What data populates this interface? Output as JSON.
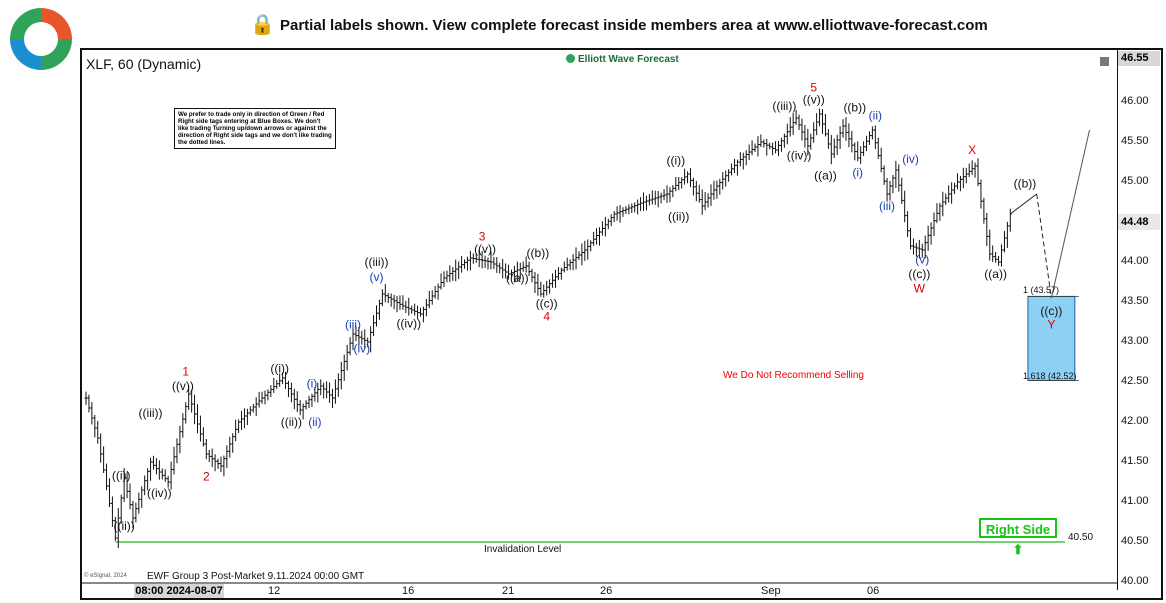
{
  "banner": {
    "text": "Partial labels shown. View complete forecast inside members area at www.elliottwave-forecast.com"
  },
  "panel": {
    "title": "XLF, 60 (Dynamic)",
    "watermark": "Elliott Wave Forecast",
    "note": "We prefer to trade only in direction of Green / Red Right side tags entering at Blue Boxes. We don't like trading Turning up/down arrows or against the direction of Right side tags and we don't like trading the dotted lines.",
    "footer": "EWF Group 3 Post-Market 9.11.2024 00:00 GMT",
    "copyright": "© eSignal, 2024"
  },
  "colors": {
    "wave_red": "#dd0000",
    "wave_blue": "#1a3fb5",
    "wave_black": "#111111",
    "box": "#8dd0f3",
    "invalidation": "#22bb22"
  },
  "chart_data": {
    "type": "candlestick",
    "symbol": "XLF",
    "interval": "60",
    "ylim": [
      40.0,
      46.55
    ],
    "y_ticks": [
      "46.55",
      "46.00",
      "45.50",
      "45.00",
      "44.48",
      "44.00",
      "43.50",
      "43.00",
      "42.50",
      "42.00",
      "41.50",
      "41.00",
      "40.50",
      "40.00"
    ],
    "last_price": "44.48",
    "top_price": "46.55",
    "x_ticks": [
      "08:00 2024-08-07",
      "12",
      "16",
      "21",
      "26",
      "Sep",
      "06"
    ],
    "price_path": [
      {
        "t": 0,
        "p": 42.3
      },
      {
        "t": 4,
        "p": 41.8
      },
      {
        "t": 7,
        "p": 41.2
      },
      {
        "t": 10,
        "p": 40.55
      },
      {
        "t": 13,
        "p": 41.3
      },
      {
        "t": 16,
        "p": 40.8
      },
      {
        "t": 22,
        "p": 41.5
      },
      {
        "t": 28,
        "p": 41.25
      },
      {
        "t": 35,
        "p": 42.35
      },
      {
        "t": 41,
        "p": 41.6
      },
      {
        "t": 46,
        "p": 41.45
      },
      {
        "t": 52,
        "p": 42.0
      },
      {
        "t": 60,
        "p": 42.3
      },
      {
        "t": 67,
        "p": 42.55
      },
      {
        "t": 73,
        "p": 42.15
      },
      {
        "t": 80,
        "p": 42.45
      },
      {
        "t": 84,
        "p": 42.3
      },
      {
        "t": 91,
        "p": 43.1
      },
      {
        "t": 96,
        "p": 43.0
      },
      {
        "t": 101,
        "p": 43.6
      },
      {
        "t": 108,
        "p": 43.45
      },
      {
        "t": 114,
        "p": 43.35
      },
      {
        "t": 122,
        "p": 43.8
      },
      {
        "t": 131,
        "p": 44.05
      },
      {
        "t": 138,
        "p": 44.0
      },
      {
        "t": 144,
        "p": 43.85
      },
      {
        "t": 150,
        "p": 43.95
      },
      {
        "t": 155,
        "p": 43.6
      },
      {
        "t": 162,
        "p": 43.9
      },
      {
        "t": 170,
        "p": 44.15
      },
      {
        "t": 180,
        "p": 44.6
      },
      {
        "t": 190,
        "p": 44.75
      },
      {
        "t": 198,
        "p": 44.85
      },
      {
        "t": 205,
        "p": 45.1
      },
      {
        "t": 210,
        "p": 44.7
      },
      {
        "t": 215,
        "p": 44.95
      },
      {
        "t": 222,
        "p": 45.25
      },
      {
        "t": 230,
        "p": 45.5
      },
      {
        "t": 235,
        "p": 45.4
      },
      {
        "t": 242,
        "p": 45.8
      },
      {
        "t": 246,
        "p": 45.45
      },
      {
        "t": 250,
        "p": 45.85
      },
      {
        "t": 254,
        "p": 45.35
      },
      {
        "t": 258,
        "p": 45.7
      },
      {
        "t": 263,
        "p": 45.3
      },
      {
        "t": 268,
        "p": 45.65
      },
      {
        "t": 273,
        "p": 44.85
      },
      {
        "t": 276,
        "p": 45.15
      },
      {
        "t": 281,
        "p": 44.2
      },
      {
        "t": 285,
        "p": 44.15
      },
      {
        "t": 291,
        "p": 44.7
      },
      {
        "t": 297,
        "p": 45.0
      },
      {
        "t": 303,
        "p": 45.2
      },
      {
        "t": 308,
        "p": 44.1
      },
      {
        "t": 311,
        "p": 44.0
      },
      {
        "t": 315,
        "p": 44.6
      }
    ],
    "labels": [
      {
        "text": "((i))",
        "t": 12,
        "p": 41.28,
        "color": "black"
      },
      {
        "text": "((ii))",
        "t": 13,
        "p": 40.65,
        "color": "black"
      },
      {
        "text": "((iii))",
        "t": 22,
        "p": 42.06,
        "color": "black"
      },
      {
        "text": "((iv))",
        "t": 25,
        "p": 41.06,
        "color": "black"
      },
      {
        "text": "1",
        "t": 34,
        "p": 42.58,
        "color": "red"
      },
      {
        "text": "((v))",
        "t": 33,
        "p": 42.4,
        "color": "black"
      },
      {
        "text": "2",
        "t": 41,
        "p": 41.27,
        "color": "red"
      },
      {
        "text": "((i))",
        "t": 66,
        "p": 42.62,
        "color": "black"
      },
      {
        "text": "((ii))",
        "t": 70,
        "p": 41.95,
        "color": "black"
      },
      {
        "text": "(i)",
        "t": 77,
        "p": 42.43,
        "color": "blue"
      },
      {
        "text": "(ii)",
        "t": 78,
        "p": 41.95,
        "color": "blue"
      },
      {
        "text": "(iii)",
        "t": 91,
        "p": 43.17,
        "color": "blue"
      },
      {
        "text": "(iv)",
        "t": 94,
        "p": 42.87,
        "color": "blue"
      },
      {
        "text": "((iii))",
        "t": 99,
        "p": 43.95,
        "color": "black"
      },
      {
        "text": "(v)",
        "t": 99,
        "p": 43.76,
        "color": "blue"
      },
      {
        "text": "((iv))",
        "t": 110,
        "p": 43.18,
        "color": "black"
      },
      {
        "text": "3",
        "t": 135,
        "p": 44.27,
        "color": "red"
      },
      {
        "text": "((v))",
        "t": 136,
        "p": 44.11,
        "color": "black"
      },
      {
        "text": "((a))",
        "t": 147,
        "p": 43.75,
        "color": "black"
      },
      {
        "text": "((b))",
        "t": 154,
        "p": 44.06,
        "color": "black"
      },
      {
        "text": "((c))",
        "t": 157,
        "p": 43.43,
        "color": "black"
      },
      {
        "text": "4",
        "t": 157,
        "p": 43.27,
        "color": "red"
      },
      {
        "text": "((i))",
        "t": 201,
        "p": 45.22,
        "color": "black"
      },
      {
        "text": "((ii))",
        "t": 202,
        "p": 44.52,
        "color": "black"
      },
      {
        "text": "((iii))",
        "t": 238,
        "p": 45.9,
        "color": "black"
      },
      {
        "text": "((v))",
        "t": 248,
        "p": 45.98,
        "color": "black"
      },
      {
        "text": "5",
        "t": 248,
        "p": 46.13,
        "color": "red"
      },
      {
        "text": "((iv))",
        "t": 243,
        "p": 45.28,
        "color": "black"
      },
      {
        "text": "((a))",
        "t": 252,
        "p": 45.03,
        "color": "black"
      },
      {
        "text": "((b))",
        "t": 262,
        "p": 45.88,
        "color": "black"
      },
      {
        "text": "(i)",
        "t": 263,
        "p": 45.07,
        "color": "blue"
      },
      {
        "text": "(ii)",
        "t": 269,
        "p": 45.78,
        "color": "blue"
      },
      {
        "text": "(iii)",
        "t": 273,
        "p": 44.65,
        "color": "blue"
      },
      {
        "text": "(iv)",
        "t": 281,
        "p": 45.24,
        "color": "blue"
      },
      {
        "text": "(v)",
        "t": 285,
        "p": 43.98,
        "color": "blue"
      },
      {
        "text": "((c))",
        "t": 284,
        "p": 43.8,
        "color": "black"
      },
      {
        "text": "W",
        "t": 284,
        "p": 43.62,
        "color": "red"
      },
      {
        "text": "X",
        "t": 302,
        "p": 45.35,
        "color": "red"
      },
      {
        "text": "((b))",
        "t": 320,
        "p": 44.93,
        "color": "black"
      },
      {
        "text": "((a))",
        "t": 310,
        "p": 43.8,
        "color": "black"
      },
      {
        "text": "((c))",
        "t": 329,
        "p": 43.34,
        "color": "black"
      },
      {
        "text": "Y",
        "t": 329,
        "p": 43.17,
        "color": "red"
      }
    ],
    "projection": {
      "from": {
        "t": 315,
        "p": 44.6
      },
      "b": {
        "t": 324,
        "p": 44.85
      },
      "c": {
        "t": 329,
        "p": 43.55
      },
      "end": {
        "t": 342,
        "p": 45.65
      }
    },
    "target_box": {
      "t0": 321,
      "t1": 337,
      "high": 43.57,
      "low": 42.52
    },
    "extension_labels": [
      "1 (43.57)",
      "1.618 (42.52)"
    ],
    "invalidation": {
      "price": 40.5,
      "label": "Invalidation Level",
      "value_text": "40.50"
    },
    "right_side_tag": "Right Side ⬆",
    "warning": "We Do Not Recommend Selling"
  }
}
